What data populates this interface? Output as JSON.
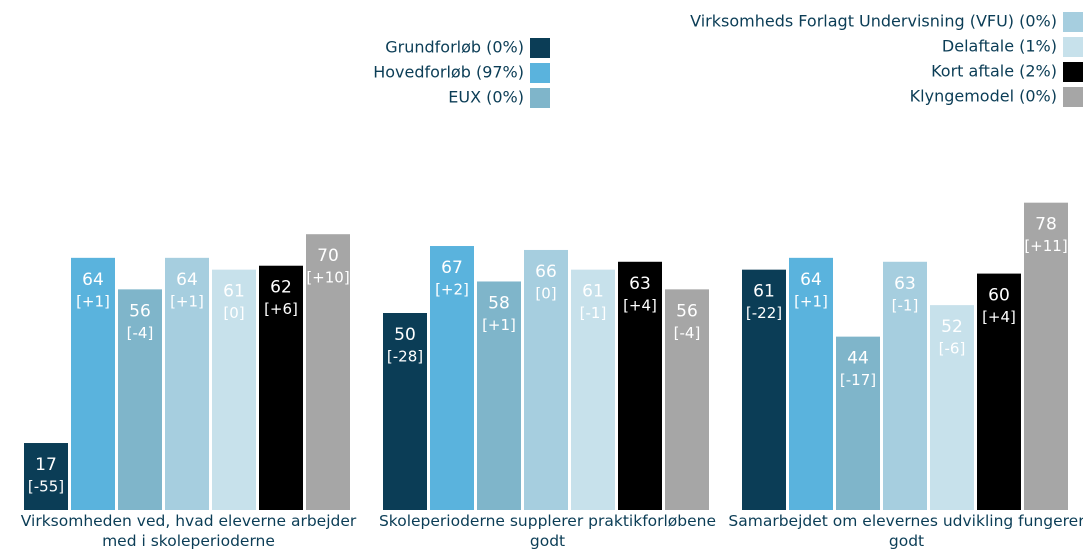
{
  "chart_data": {
    "type": "bar",
    "categories": [
      "Virksomheden ved, hvad eleverne arbejder med i skoleperioderne",
      "Skoleperioderne supplerer praktikforløbene godt",
      "Samarbejdet om elevernes udvikling fungerer godt"
    ],
    "series": [
      {
        "name": "Grundforløb (0%)",
        "color": "#0b3d56",
        "values": [
          17,
          50,
          61
        ],
        "changes": [
          "[-55]",
          "[-28]",
          "[-22]"
        ]
      },
      {
        "name": "Hovedforløb (97%)",
        "color": "#5ab3dd",
        "values": [
          64,
          67,
          64
        ],
        "changes": [
          "[+1]",
          "[+2]",
          "[+1]"
        ]
      },
      {
        "name": "EUX (0%)",
        "color": "#7fb5ca",
        "values": [
          56,
          58,
          44
        ],
        "changes": [
          "[-4]",
          "[+1]",
          "[-17]"
        ]
      },
      {
        "name": "Virksomheds Forlagt Undervisning (VFU) (0%)",
        "color": "#a6cedf",
        "values": [
          64,
          66,
          63
        ],
        "changes": [
          "[+1]",
          "[0]",
          "[-1]"
        ]
      },
      {
        "name": "Delaftale (1%)",
        "color": "#c7e1eb",
        "values": [
          61,
          61,
          52
        ],
        "changes": [
          "[0]",
          "[-1]",
          "[-6]"
        ]
      },
      {
        "name": "Kort aftale (2%)",
        "color": "#000000",
        "values": [
          62,
          63,
          60
        ],
        "changes": [
          "[+6]",
          "[+4]",
          "[+4]"
        ]
      },
      {
        "name": "Klyngemodel (0%)",
        "color": "#a6a6a6",
        "values": [
          70,
          56,
          78
        ],
        "changes": [
          "[+10]",
          "[-4]",
          "[+11]"
        ]
      }
    ]
  }
}
